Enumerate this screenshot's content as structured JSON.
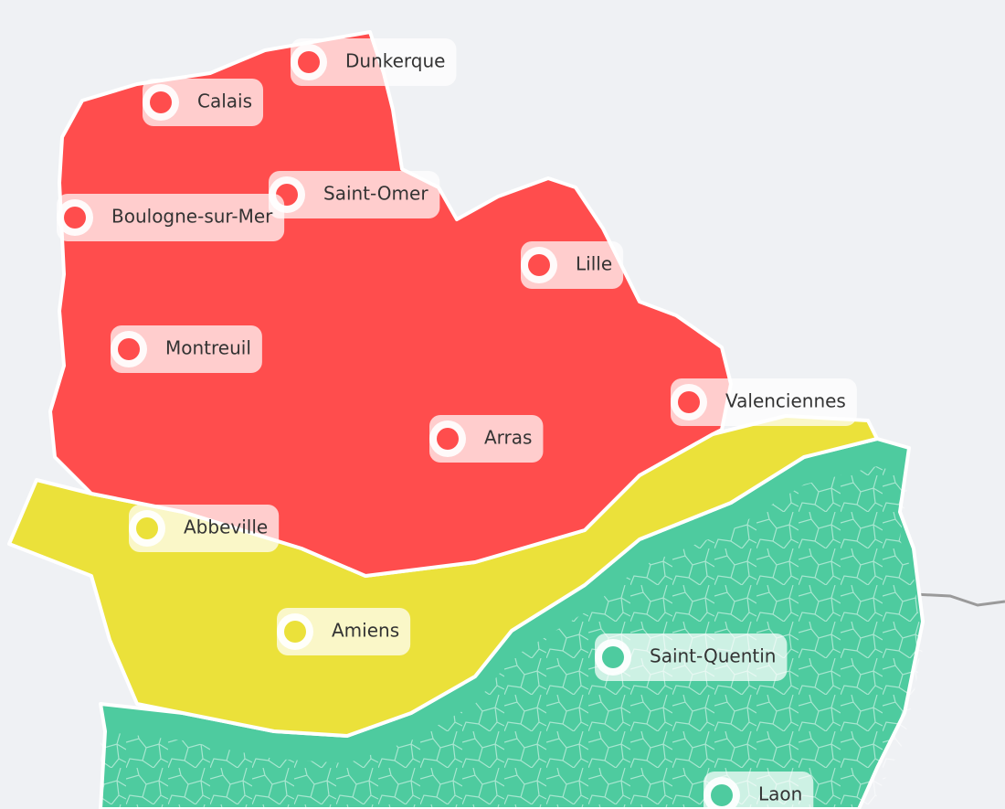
{
  "map": {
    "cities": [
      {
        "name": "Dunkerque",
        "color": "#ff4d4d"
      },
      {
        "name": "Calais",
        "color": "#ff4d4d"
      },
      {
        "name": "Saint-Omer",
        "color": "#ff4d4d"
      },
      {
        "name": "Boulogne-sur-Mer",
        "color": "#ff4d4d"
      },
      {
        "name": "Lille",
        "color": "#ff4d4d"
      },
      {
        "name": "Montreuil",
        "color": "#ff4d4d"
      },
      {
        "name": "Valenciennes",
        "color": "#ff4d4d"
      },
      {
        "name": "Arras",
        "color": "#ff4d4d"
      },
      {
        "name": "Abbeville",
        "color": "#ebe13a"
      },
      {
        "name": "Amiens",
        "color": "#ebe13a"
      },
      {
        "name": "Saint-Quentin",
        "color": "#4ecb9f"
      },
      {
        "name": "Laon",
        "color": "#4ecb9f"
      }
    ]
  }
}
